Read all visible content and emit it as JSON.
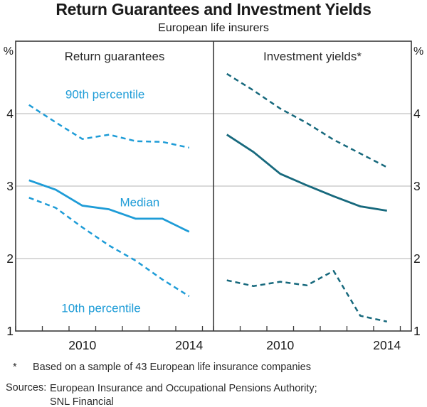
{
  "chart_data": {
    "type": "line",
    "title": "Return Guarantees and Investment Yields",
    "subtitle": "European life insurers",
    "unit_left": "%",
    "unit_right": "%",
    "x": [
      2008.5,
      2009.5,
      2010.5,
      2011.5,
      2012.5,
      2013.5,
      2014.5
    ],
    "xlim": [
      2008,
      2015.4
    ],
    "x_tick_years": [
      2008,
      2009,
      2010,
      2011,
      2012,
      2013,
      2014,
      2015
    ],
    "x_axis_labels": [
      {
        "x": 2010.5,
        "label": "2010"
      },
      {
        "x": 2014.5,
        "label": "2014"
      }
    ],
    "ylim": [
      1,
      5
    ],
    "y_tick_labels": [
      1,
      2,
      3,
      4
    ],
    "gridline_values": [
      2,
      3,
      4
    ],
    "grid_on": true,
    "colors": {
      "light_blue": "#1e9cd7",
      "dark_teal": "#17697d",
      "grid": "#b3b3b3",
      "axis": "#3a3a3a",
      "panel_title": "#2b2b2b"
    },
    "panels": [
      {
        "title": "Return guarantees",
        "series": [
          {
            "name": "90th percentile",
            "line": "dashed",
            "color_key": "light_blue",
            "values": [
              4.12,
              3.88,
              3.65,
              3.71,
              3.62,
              3.61,
              3.53
            ]
          },
          {
            "name": "Median",
            "line": "solid",
            "color_key": "light_blue",
            "values": [
              3.08,
              2.95,
              2.73,
              2.68,
              2.55,
              2.55,
              2.37
            ]
          },
          {
            "name": "10th percentile",
            "line": "dashed",
            "color_key": "light_blue",
            "values": [
              2.84,
              2.7,
              2.43,
              2.18,
              1.97,
              1.71,
              1.48
            ]
          }
        ],
        "annotations": [
          {
            "text": "90th percentile",
            "x": 2011.35,
            "y": 4.27,
            "color_key": "light_blue"
          },
          {
            "text": "Median",
            "x": 2012.65,
            "y": 2.78,
            "color_key": "light_blue"
          },
          {
            "text": "10th percentile",
            "x": 2011.2,
            "y": 1.32,
            "color_key": "light_blue"
          }
        ]
      },
      {
        "title": "Investment yields*",
        "series": [
          {
            "name": "90th percentile",
            "line": "dashed",
            "color_key": "dark_teal",
            "values": [
              4.55,
              4.32,
              4.07,
              3.87,
              3.64,
              3.45,
              3.26
            ]
          },
          {
            "name": "Median",
            "line": "solid",
            "color_key": "dark_teal",
            "values": [
              3.71,
              3.47,
              3.17,
              3.01,
              2.86,
              2.72,
              2.66
            ]
          },
          {
            "name": "10th percentile",
            "line": "dashed",
            "color_key": "dark_teal",
            "values": [
              1.7,
              1.62,
              1.68,
              1.63,
              1.83,
              1.21,
              1.13
            ]
          }
        ],
        "annotations": []
      }
    ],
    "footnote": {
      "marker": "*",
      "text": "Based on a sample of 43 European life insurance companies"
    },
    "sources": {
      "label": "Sources:",
      "lines": [
        "European Insurance and Occupational Pensions Authority;",
        "SNL Financial"
      ]
    }
  }
}
